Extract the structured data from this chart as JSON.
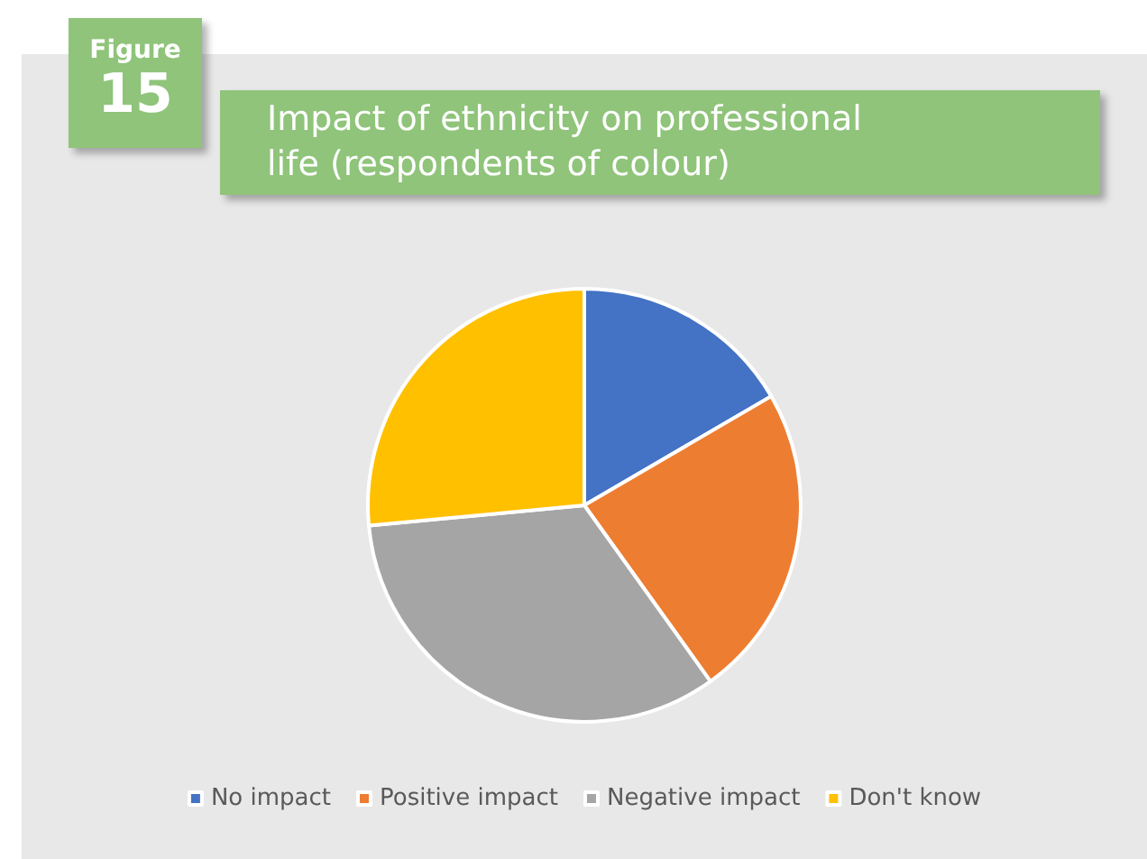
{
  "chart_data": {
    "type": "pie",
    "title": "Impact of ethnicity on professional life (respondents of colour)",
    "annotations": [
      "Figure",
      "15"
    ],
    "categories": [
      "No impact",
      "Positive impact",
      "Negative impact",
      "Don't know"
    ],
    "values": [
      16.6,
      23.5,
      33.4,
      26.5
    ],
    "colors": [
      "#4472c4",
      "#ed7d31",
      "#a5a5a5",
      "#ffc000"
    ],
    "legend": "bottom"
  }
}
